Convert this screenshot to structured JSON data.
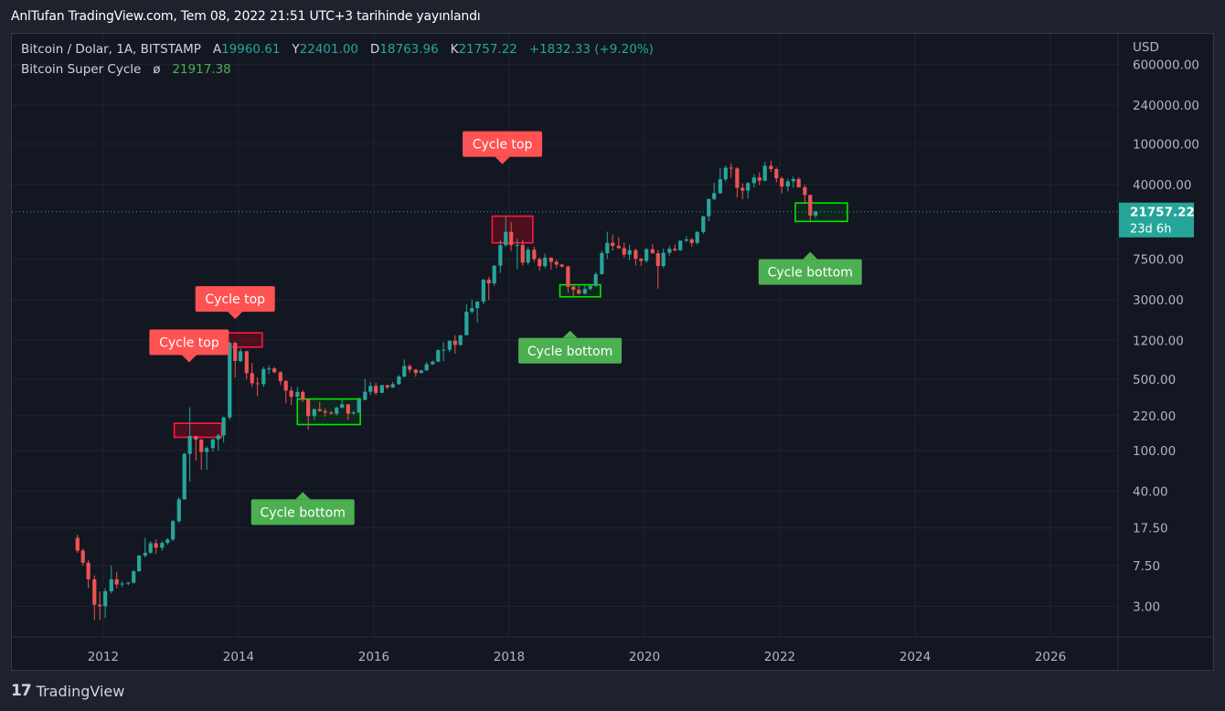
{
  "header": {
    "text": "AnlTufan TradingView.com, Tem 08, 2022 21:51 UTC+3 tarihinde yayınlandı"
  },
  "legend": {
    "symbol": "Bitcoin / Dolar, 1A, BITSTAMP",
    "open_label": "A",
    "open": "19960.61",
    "high_label": "Y",
    "high": "22401.00",
    "low_label": "D",
    "low": "18763.96",
    "close_label": "K",
    "close": "21757.22",
    "change": "+1832.33 (+9.20%)",
    "indicator_name": "Bitcoin Super Cycle",
    "indicator_symbol": "ø",
    "indicator_value": "21917.38"
  },
  "footer": {
    "logo_mark": "17",
    "brand": "TradingView"
  },
  "chart_data": {
    "type": "candlestick",
    "symbol": "Bitcoin / Dolar, 1A, BITSTAMP",
    "currency_label": "USD",
    "scale": "log",
    "ylim": [
      1.5,
      1200000
    ],
    "xlim": [
      2010.65,
      2027.0
    ],
    "y_ticks": [
      {
        "value": 600000,
        "label": "600000.00"
      },
      {
        "value": 240000,
        "label": "240000.00"
      },
      {
        "value": 100000,
        "label": "100000.00"
      },
      {
        "value": 40000,
        "label": "40000.00"
      },
      {
        "value": 7500,
        "label": "7500.00"
      },
      {
        "value": 3000,
        "label": "3000.00"
      },
      {
        "value": 1200,
        "label": "1200.00"
      },
      {
        "value": 500,
        "label": "500.00"
      },
      {
        "value": 220,
        "label": "220.00"
      },
      {
        "value": 100,
        "label": "100.00"
      },
      {
        "value": 40,
        "label": "40.00"
      },
      {
        "value": 17.5,
        "label": "17.50"
      },
      {
        "value": 7.5,
        "label": "7.50"
      },
      {
        "value": 3,
        "label": "3.00"
      }
    ],
    "x_ticks": [
      {
        "value": 2012,
        "label": "2012"
      },
      {
        "value": 2014,
        "label": "2014"
      },
      {
        "value": 2016,
        "label": "2016"
      },
      {
        "value": 2018,
        "label": "2018"
      },
      {
        "value": 2020,
        "label": "2020"
      },
      {
        "value": 2022,
        "label": "2022"
      },
      {
        "value": 2024,
        "label": "2024"
      },
      {
        "value": 2026,
        "label": "2026"
      }
    ],
    "last_price": {
      "value": 21757.22,
      "label": "21757.22",
      "countdown": "23d 6h"
    },
    "colors": {
      "up": "#26a69a",
      "down": "#ef5350",
      "top_label": "#ff5252",
      "bottom_label": "#4caf50",
      "top_box": "#ff1744",
      "bottom_box": "#00e600",
      "price_line": "#26a69a"
    },
    "candles": [
      {
        "t": 2011.62,
        "o": 14,
        "h": 15,
        "l": 10,
        "c": 10.5
      },
      {
        "t": 2011.7,
        "o": 10.5,
        "h": 11,
        "l": 7.5,
        "c": 8
      },
      {
        "t": 2011.78,
        "o": 8,
        "h": 8.5,
        "l": 4.5,
        "c": 5.5
      },
      {
        "t": 2011.87,
        "o": 5.5,
        "h": 6,
        "l": 2.2,
        "c": 3.1
      },
      {
        "t": 2011.95,
        "o": 3.1,
        "h": 4.2,
        "l": 2.2,
        "c": 3
      },
      {
        "t": 2012.03,
        "o": 3,
        "h": 4.5,
        "l": 2.3,
        "c": 4.2
      },
      {
        "t": 2012.12,
        "o": 4.2,
        "h": 7.5,
        "l": 4,
        "c": 5.5
      },
      {
        "t": 2012.2,
        "o": 5.5,
        "h": 6.5,
        "l": 4.5,
        "c": 4.9
      },
      {
        "t": 2012.28,
        "o": 4.9,
        "h": 5.3,
        "l": 4.6,
        "c": 5
      },
      {
        "t": 2012.37,
        "o": 5,
        "h": 5.2,
        "l": 4.8,
        "c": 5.1
      },
      {
        "t": 2012.45,
        "o": 5.1,
        "h": 6.8,
        "l": 5,
        "c": 6.6
      },
      {
        "t": 2012.53,
        "o": 6.6,
        "h": 9.5,
        "l": 6.5,
        "c": 9.4
      },
      {
        "t": 2012.62,
        "o": 9.4,
        "h": 14,
        "l": 9,
        "c": 10
      },
      {
        "t": 2012.7,
        "o": 10,
        "h": 13,
        "l": 9.8,
        "c": 12.4
      },
      {
        "t": 2012.78,
        "o": 12.4,
        "h": 13.5,
        "l": 9.8,
        "c": 11.2
      },
      {
        "t": 2012.87,
        "o": 11.2,
        "h": 13,
        "l": 10.5,
        "c": 12.5
      },
      {
        "t": 2012.95,
        "o": 12.5,
        "h": 14,
        "l": 12,
        "c": 13.5
      },
      {
        "t": 2013.03,
        "o": 13.5,
        "h": 21,
        "l": 13,
        "c": 20.4
      },
      {
        "t": 2013.12,
        "o": 20.4,
        "h": 35,
        "l": 19.5,
        "c": 33.4
      },
      {
        "t": 2013.2,
        "o": 33.4,
        "h": 95,
        "l": 33,
        "c": 93
      },
      {
        "t": 2013.28,
        "o": 93,
        "h": 266,
        "l": 50,
        "c": 139
      },
      {
        "t": 2013.37,
        "o": 139,
        "h": 140,
        "l": 80,
        "c": 128
      },
      {
        "t": 2013.45,
        "o": 128,
        "h": 130,
        "l": 65,
        "c": 97
      },
      {
        "t": 2013.53,
        "o": 97,
        "h": 110,
        "l": 65,
        "c": 106
      },
      {
        "t": 2013.62,
        "o": 106,
        "h": 130,
        "l": 98,
        "c": 129
      },
      {
        "t": 2013.7,
        "o": 129,
        "h": 145,
        "l": 100,
        "c": 141
      },
      {
        "t": 2013.78,
        "o": 141,
        "h": 215,
        "l": 120,
        "c": 211
      },
      {
        "t": 2013.87,
        "o": 211,
        "h": 1163,
        "l": 200,
        "c": 1132
      },
      {
        "t": 2013.95,
        "o": 1132,
        "h": 1160,
        "l": 520,
        "c": 754
      },
      {
        "t": 2014.03,
        "o": 754,
        "h": 1000,
        "l": 730,
        "c": 938
      },
      {
        "t": 2014.12,
        "o": 938,
        "h": 950,
        "l": 500,
        "c": 573
      },
      {
        "t": 2014.2,
        "o": 573,
        "h": 720,
        "l": 420,
        "c": 456
      },
      {
        "t": 2014.28,
        "o": 456,
        "h": 520,
        "l": 340,
        "c": 447
      },
      {
        "t": 2014.37,
        "o": 447,
        "h": 660,
        "l": 420,
        "c": 628
      },
      {
        "t": 2014.45,
        "o": 628,
        "h": 680,
        "l": 560,
        "c": 636
      },
      {
        "t": 2014.53,
        "o": 636,
        "h": 660,
        "l": 570,
        "c": 585
      },
      {
        "t": 2014.62,
        "o": 585,
        "h": 600,
        "l": 440,
        "c": 479
      },
      {
        "t": 2014.7,
        "o": 479,
        "h": 490,
        "l": 290,
        "c": 387
      },
      {
        "t": 2014.78,
        "o": 387,
        "h": 420,
        "l": 280,
        "c": 337
      },
      {
        "t": 2014.87,
        "o": 337,
        "h": 420,
        "l": 320,
        "c": 375
      },
      {
        "t": 2014.95,
        "o": 375,
        "h": 390,
        "l": 300,
        "c": 318
      },
      {
        "t": 2015.03,
        "o": 318,
        "h": 320,
        "l": 160,
        "c": 218
      },
      {
        "t": 2015.12,
        "o": 218,
        "h": 260,
        "l": 200,
        "c": 254
      },
      {
        "t": 2015.2,
        "o": 254,
        "h": 300,
        "l": 240,
        "c": 244
      },
      {
        "t": 2015.28,
        "o": 244,
        "h": 260,
        "l": 215,
        "c": 236
      },
      {
        "t": 2015.37,
        "o": 236,
        "h": 245,
        "l": 225,
        "c": 230
      },
      {
        "t": 2015.45,
        "o": 230,
        "h": 270,
        "l": 220,
        "c": 263
      },
      {
        "t": 2015.53,
        "o": 263,
        "h": 315,
        "l": 260,
        "c": 284
      },
      {
        "t": 2015.62,
        "o": 284,
        "h": 285,
        "l": 200,
        "c": 230
      },
      {
        "t": 2015.7,
        "o": 230,
        "h": 245,
        "l": 225,
        "c": 236
      },
      {
        "t": 2015.78,
        "o": 236,
        "h": 330,
        "l": 235,
        "c": 314
      },
      {
        "t": 2015.87,
        "o": 314,
        "h": 500,
        "l": 310,
        "c": 377
      },
      {
        "t": 2015.95,
        "o": 377,
        "h": 470,
        "l": 350,
        "c": 430
      },
      {
        "t": 2016.03,
        "o": 430,
        "h": 460,
        "l": 350,
        "c": 368
      },
      {
        "t": 2016.12,
        "o": 368,
        "h": 440,
        "l": 365,
        "c": 437
      },
      {
        "t": 2016.2,
        "o": 437,
        "h": 440,
        "l": 400,
        "c": 416
      },
      {
        "t": 2016.28,
        "o": 416,
        "h": 470,
        "l": 410,
        "c": 448
      },
      {
        "t": 2016.37,
        "o": 448,
        "h": 550,
        "l": 440,
        "c": 531
      },
      {
        "t": 2016.45,
        "o": 531,
        "h": 780,
        "l": 520,
        "c": 673
      },
      {
        "t": 2016.53,
        "o": 673,
        "h": 700,
        "l": 580,
        "c": 621
      },
      {
        "t": 2016.62,
        "o": 621,
        "h": 630,
        "l": 530,
        "c": 575
      },
      {
        "t": 2016.7,
        "o": 575,
        "h": 620,
        "l": 570,
        "c": 609
      },
      {
        "t": 2016.78,
        "o": 609,
        "h": 740,
        "l": 605,
        "c": 700
      },
      {
        "t": 2016.87,
        "o": 700,
        "h": 760,
        "l": 690,
        "c": 742
      },
      {
        "t": 2016.95,
        "o": 742,
        "h": 980,
        "l": 740,
        "c": 963
      },
      {
        "t": 2017.03,
        "o": 963,
        "h": 1150,
        "l": 750,
        "c": 970
      },
      {
        "t": 2017.12,
        "o": 970,
        "h": 1200,
        "l": 920,
        "c": 1190
      },
      {
        "t": 2017.2,
        "o": 1190,
        "h": 1350,
        "l": 890,
        "c": 1080
      },
      {
        "t": 2017.28,
        "o": 1080,
        "h": 1350,
        "l": 1070,
        "c": 1348
      },
      {
        "t": 2017.37,
        "o": 1348,
        "h": 2700,
        "l": 1340,
        "c": 2286
      },
      {
        "t": 2017.45,
        "o": 2286,
        "h": 3000,
        "l": 2200,
        "c": 2480
      },
      {
        "t": 2017.53,
        "o": 2480,
        "h": 2900,
        "l": 1800,
        "c": 2875
      },
      {
        "t": 2017.62,
        "o": 2875,
        "h": 4800,
        "l": 2700,
        "c": 4703
      },
      {
        "t": 2017.7,
        "o": 4703,
        "h": 5000,
        "l": 2970,
        "c": 4338
      },
      {
        "t": 2017.78,
        "o": 4338,
        "h": 6470,
        "l": 4100,
        "c": 6468
      },
      {
        "t": 2017.87,
        "o": 6468,
        "h": 11500,
        "l": 5500,
        "c": 10233
      },
      {
        "t": 2017.95,
        "o": 10233,
        "h": 19666,
        "l": 10000,
        "c": 13850
      },
      {
        "t": 2018.03,
        "o": 13850,
        "h": 17200,
        "l": 9000,
        "c": 10265
      },
      {
        "t": 2018.12,
        "o": 10265,
        "h": 11800,
        "l": 6000,
        "c": 10300
      },
      {
        "t": 2018.2,
        "o": 10300,
        "h": 11600,
        "l": 6500,
        "c": 6925
      },
      {
        "t": 2018.28,
        "o": 6925,
        "h": 9800,
        "l": 6600,
        "c": 9245
      },
      {
        "t": 2018.37,
        "o": 9245,
        "h": 9950,
        "l": 7000,
        "c": 7490
      },
      {
        "t": 2018.45,
        "o": 7490,
        "h": 7780,
        "l": 5780,
        "c": 6390
      },
      {
        "t": 2018.53,
        "o": 6390,
        "h": 8500,
        "l": 6100,
        "c": 7730
      },
      {
        "t": 2018.62,
        "o": 7730,
        "h": 7800,
        "l": 5900,
        "c": 7030
      },
      {
        "t": 2018.7,
        "o": 7030,
        "h": 7400,
        "l": 6100,
        "c": 6620
      },
      {
        "t": 2018.78,
        "o": 6620,
        "h": 6700,
        "l": 6200,
        "c": 6320
      },
      {
        "t": 2018.87,
        "o": 6320,
        "h": 6500,
        "l": 3500,
        "c": 4020
      },
      {
        "t": 2018.95,
        "o": 4020,
        "h": 4200,
        "l": 3200,
        "c": 3750
      },
      {
        "t": 2019.03,
        "o": 3750,
        "h": 4100,
        "l": 3380,
        "c": 3440
      },
      {
        "t": 2019.12,
        "o": 3440,
        "h": 4200,
        "l": 3380,
        "c": 3820
      },
      {
        "t": 2019.2,
        "o": 3820,
        "h": 4100,
        "l": 3700,
        "c": 4100
      },
      {
        "t": 2019.28,
        "o": 4100,
        "h": 5600,
        "l": 4000,
        "c": 5330
      },
      {
        "t": 2019.37,
        "o": 5330,
        "h": 9000,
        "l": 5300,
        "c": 8570
      },
      {
        "t": 2019.45,
        "o": 8570,
        "h": 13880,
        "l": 7500,
        "c": 10800
      },
      {
        "t": 2019.53,
        "o": 10800,
        "h": 13100,
        "l": 9100,
        "c": 10080
      },
      {
        "t": 2019.62,
        "o": 10080,
        "h": 12300,
        "l": 9400,
        "c": 9590
      },
      {
        "t": 2019.7,
        "o": 9590,
        "h": 10900,
        "l": 7800,
        "c": 8290
      },
      {
        "t": 2019.78,
        "o": 8290,
        "h": 10400,
        "l": 7300,
        "c": 9150
      },
      {
        "t": 2019.87,
        "o": 9150,
        "h": 9500,
        "l": 6500,
        "c": 7540
      },
      {
        "t": 2019.95,
        "o": 7540,
        "h": 7700,
        "l": 6400,
        "c": 7190
      },
      {
        "t": 2020.03,
        "o": 7190,
        "h": 9600,
        "l": 6900,
        "c": 9350
      },
      {
        "t": 2020.12,
        "o": 9350,
        "h": 10500,
        "l": 8500,
        "c": 8530
      },
      {
        "t": 2020.2,
        "o": 8530,
        "h": 9200,
        "l": 3850,
        "c": 6410
      },
      {
        "t": 2020.28,
        "o": 6410,
        "h": 9500,
        "l": 6150,
        "c": 8630
      },
      {
        "t": 2020.37,
        "o": 8630,
        "h": 10070,
        "l": 8100,
        "c": 9450
      },
      {
        "t": 2020.45,
        "o": 9450,
        "h": 10400,
        "l": 8900,
        "c": 9140
      },
      {
        "t": 2020.53,
        "o": 9140,
        "h": 11400,
        "l": 9000,
        "c": 11330
      },
      {
        "t": 2020.62,
        "o": 11330,
        "h": 12500,
        "l": 11000,
        "c": 11650
      },
      {
        "t": 2020.7,
        "o": 11650,
        "h": 12050,
        "l": 9900,
        "c": 10780
      },
      {
        "t": 2020.78,
        "o": 10780,
        "h": 14000,
        "l": 10400,
        "c": 13800
      },
      {
        "t": 2020.87,
        "o": 13800,
        "h": 19800,
        "l": 13200,
        "c": 19700
      },
      {
        "t": 2020.95,
        "o": 19700,
        "h": 29300,
        "l": 17600,
        "c": 28990
      },
      {
        "t": 2021.03,
        "o": 28990,
        "h": 41950,
        "l": 28100,
        "c": 33100
      },
      {
        "t": 2021.12,
        "o": 33100,
        "h": 58350,
        "l": 32300,
        "c": 45240
      },
      {
        "t": 2021.2,
        "o": 45240,
        "h": 61800,
        "l": 43000,
        "c": 58740
      },
      {
        "t": 2021.28,
        "o": 58740,
        "h": 64850,
        "l": 47000,
        "c": 57720
      },
      {
        "t": 2021.37,
        "o": 57720,
        "h": 59500,
        "l": 30000,
        "c": 37300
      },
      {
        "t": 2021.45,
        "o": 37300,
        "h": 41300,
        "l": 28800,
        "c": 35040
      },
      {
        "t": 2021.53,
        "o": 35040,
        "h": 42600,
        "l": 29300,
        "c": 41490
      },
      {
        "t": 2021.62,
        "o": 41490,
        "h": 50500,
        "l": 37300,
        "c": 47100
      },
      {
        "t": 2021.7,
        "o": 47100,
        "h": 52900,
        "l": 39600,
        "c": 43820
      },
      {
        "t": 2021.78,
        "o": 43820,
        "h": 66900,
        "l": 43300,
        "c": 61300
      },
      {
        "t": 2021.87,
        "o": 61300,
        "h": 69000,
        "l": 53300,
        "c": 57000
      },
      {
        "t": 2021.95,
        "o": 57000,
        "h": 59000,
        "l": 42000,
        "c": 46200
      },
      {
        "t": 2022.03,
        "o": 46200,
        "h": 48000,
        "l": 32900,
        "c": 38500
      },
      {
        "t": 2022.12,
        "o": 38500,
        "h": 45800,
        "l": 34300,
        "c": 43200
      },
      {
        "t": 2022.2,
        "o": 43200,
        "h": 48200,
        "l": 37200,
        "c": 45500
      },
      {
        "t": 2022.28,
        "o": 45500,
        "h": 47400,
        "l": 37700,
        "c": 37700
      },
      {
        "t": 2022.37,
        "o": 37700,
        "h": 40000,
        "l": 26700,
        "c": 31800
      },
      {
        "t": 2022.45,
        "o": 31800,
        "h": 31900,
        "l": 17600,
        "c": 19960
      },
      {
        "t": 2022.53,
        "o": 19960.61,
        "h": 22401,
        "l": 18763.96,
        "c": 21757.22
      }
    ],
    "annotations": [
      {
        "text": "Cycle top",
        "kind": "top",
        "t": 2013.27,
        "v": 1150
      },
      {
        "text": "Cycle top",
        "kind": "top",
        "t": 2013.95,
        "v": 3050
      },
      {
        "text": "Cycle top",
        "kind": "top",
        "t": 2017.9,
        "v": 100000
      },
      {
        "text": "Cycle bottom",
        "kind": "bottom",
        "t": 2014.95,
        "v": 25
      },
      {
        "text": "Cycle bottom",
        "kind": "bottom",
        "t": 2018.9,
        "v": 950
      },
      {
        "text": "Cycle bottom",
        "kind": "bottom",
        "t": 2022.45,
        "v": 5600
      }
    ],
    "zones": [
      {
        "kind": "top",
        "t0": 2013.05,
        "t1": 2013.75,
        "v0": 135,
        "v1": 185
      },
      {
        "kind": "top",
        "t0": 2013.82,
        "t1": 2014.35,
        "v0": 1030,
        "v1": 1420
      },
      {
        "kind": "top",
        "t0": 2017.75,
        "t1": 2018.35,
        "v0": 10800,
        "v1": 19700
      },
      {
        "kind": "bottom",
        "t0": 2014.87,
        "t1": 2015.8,
        "v0": 180,
        "v1": 320
      },
      {
        "kind": "bottom",
        "t0": 2018.75,
        "t1": 2019.35,
        "v0": 3200,
        "v1": 4200
      },
      {
        "kind": "bottom",
        "t0": 2022.23,
        "t1": 2023.0,
        "v0": 17500,
        "v1": 26500
      }
    ]
  }
}
